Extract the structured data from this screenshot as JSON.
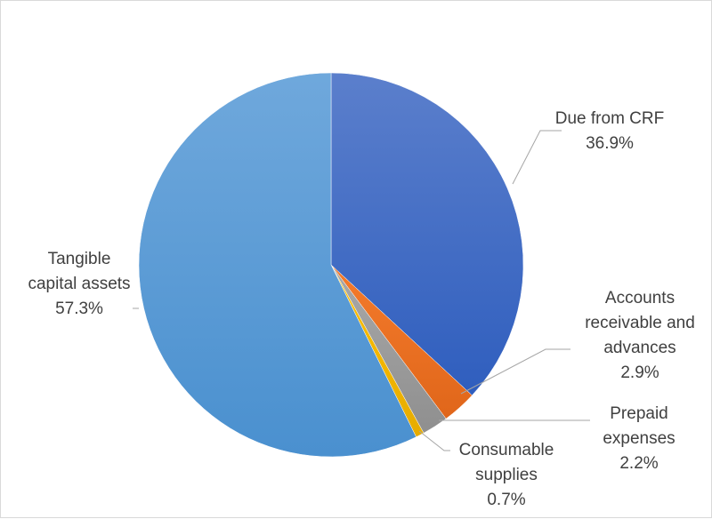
{
  "chart_data": {
    "type": "pie",
    "title": "",
    "slices": [
      {
        "name": "Due from CRF",
        "value": 36.9,
        "label_lines": [
          "Due from CRF",
          "36.9%"
        ],
        "color_top": "#5b7fcc",
        "color_bottom": "#2f5ebe"
      },
      {
        "name": "Accounts receivable and advances",
        "value": 2.9,
        "label_lines": [
          "Accounts",
          "receivable and",
          "advances",
          "2.9%"
        ],
        "color_top": "#f47b2c",
        "color_bottom": "#e0661a"
      },
      {
        "name": "Prepaid expenses",
        "value": 2.2,
        "label_lines": [
          "Prepaid",
          "expenses",
          "2.2%"
        ],
        "color_top": "#a9a9a9",
        "color_bottom": "#8f8f8f"
      },
      {
        "name": "Consumable supplies",
        "value": 0.7,
        "label_lines": [
          "Consumable",
          "supplies",
          "0.7%"
        ],
        "color_top": "#ffc000",
        "color_bottom": "#e6ac00"
      },
      {
        "name": "Tangible capital assets",
        "value": 57.3,
        "label_lines": [
          "Tangible",
          "capital assets",
          "57.3%"
        ],
        "color_top": "#6fa8dc",
        "color_bottom": "#4a90cf"
      }
    ],
    "start_angle_deg": 0,
    "direction": "clockwise",
    "legend": "none",
    "data_labels": "outside-with-leader-lines"
  }
}
